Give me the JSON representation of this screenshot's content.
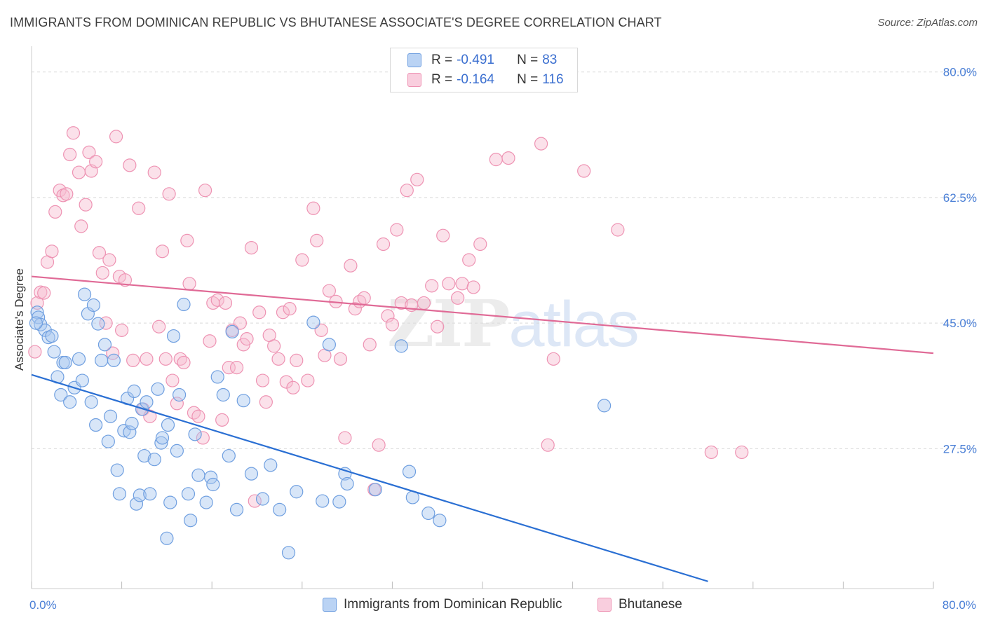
{
  "title": "IMMIGRANTS FROM DOMINICAN REPUBLIC VS BHUTANESE ASSOCIATE'S DEGREE CORRELATION CHART",
  "source": "Source: ZipAtlas.com",
  "watermark": {
    "part1": "ZIP",
    "part2": "atlas"
  },
  "legend": {
    "r_label": "R =",
    "n_label": "N =",
    "series": [
      {
        "r": "-0.491",
        "n": "83"
      },
      {
        "r": "-0.164",
        "n": "116"
      }
    ]
  },
  "colors": {
    "blue_fill": "#a9c8f0",
    "blue_stroke": "#6f9fe0",
    "blue_line": "#2a6fd3",
    "pink_fill": "#f7bcd0",
    "pink_stroke": "#ee93b3",
    "pink_line": "#e06a96"
  },
  "chart_data": {
    "type": "scatter",
    "title": "IMMIGRANTS FROM DOMINICAN REPUBLIC VS BHUTANESE ASSOCIATE'S DEGREE CORRELATION CHART",
    "xlabel": "",
    "ylabel": "Associate's Degree",
    "xlim": [
      0,
      80
    ],
    "ylim": [
      8,
      83
    ],
    "x_tick_labels": [
      "0.0%",
      "80.0%"
    ],
    "y_ticks": [
      27.5,
      45.0,
      62.5,
      80.0
    ],
    "y_tick_labels": [
      "27.5%",
      "45.0%",
      "62.5%",
      "80.0%"
    ],
    "grid": true,
    "series": [
      {
        "name": "Immigrants from Dominican Republic",
        "color": "blue",
        "trend": {
          "x": [
            0,
            60
          ],
          "y": [
            37.8,
            9.0
          ]
        },
        "points": [
          [
            0.5,
            46.5
          ],
          [
            0.6,
            45.8
          ],
          [
            0.8,
            44.8
          ],
          [
            1.2,
            44.0
          ],
          [
            1.5,
            43.0
          ],
          [
            1.8,
            43.2
          ],
          [
            2.0,
            41.0
          ],
          [
            2.3,
            37.5
          ],
          [
            2.6,
            35.0
          ],
          [
            2.8,
            39.5
          ],
          [
            3.0,
            39.5
          ],
          [
            3.4,
            34.0
          ],
          [
            3.8,
            36.0
          ],
          [
            4.2,
            40.0
          ],
          [
            4.5,
            37.0
          ],
          [
            4.7,
            49.0
          ],
          [
            5.0,
            46.3
          ],
          [
            5.5,
            47.5
          ],
          [
            5.9,
            44.9
          ],
          [
            6.2,
            39.8
          ],
          [
            6.5,
            42.0
          ],
          [
            6.8,
            28.5
          ],
          [
            7.0,
            32.0
          ],
          [
            7.3,
            39.8
          ],
          [
            5.3,
            34.0
          ],
          [
            5.7,
            30.8
          ],
          [
            7.6,
            24.5
          ],
          [
            7.8,
            21.2
          ],
          [
            8.2,
            30.0
          ],
          [
            8.5,
            34.5
          ],
          [
            8.7,
            29.8
          ],
          [
            8.9,
            31.0
          ],
          [
            9.1,
            35.5
          ],
          [
            9.3,
            19.8
          ],
          [
            9.6,
            21.0
          ],
          [
            9.8,
            33.0
          ],
          [
            10.0,
            26.5
          ],
          [
            10.2,
            34.0
          ],
          [
            10.5,
            21.2
          ],
          [
            10.9,
            26.0
          ],
          [
            11.2,
            35.8
          ],
          [
            11.5,
            28.3
          ],
          [
            11.6,
            29.0
          ],
          [
            12.0,
            15.0
          ],
          [
            12.1,
            30.8
          ],
          [
            12.3,
            20.0
          ],
          [
            12.6,
            43.2
          ],
          [
            12.9,
            27.2
          ],
          [
            13.1,
            35.0
          ],
          [
            13.5,
            47.6
          ],
          [
            13.9,
            21.2
          ],
          [
            14.1,
            17.5
          ],
          [
            14.5,
            29.5
          ],
          [
            14.8,
            23.8
          ],
          [
            15.5,
            20.0
          ],
          [
            15.9,
            23.5
          ],
          [
            16.1,
            22.5
          ],
          [
            16.5,
            37.5
          ],
          [
            17.0,
            35.0
          ],
          [
            17.5,
            26.5
          ],
          [
            17.8,
            43.8
          ],
          [
            18.2,
            19.0
          ],
          [
            18.8,
            34.2
          ],
          [
            19.5,
            24.0
          ],
          [
            20.5,
            20.5
          ],
          [
            21.2,
            25.2
          ],
          [
            22.0,
            19.0
          ],
          [
            22.8,
            13.0
          ],
          [
            23.5,
            21.5
          ],
          [
            25.0,
            45.1
          ],
          [
            25.8,
            20.2
          ],
          [
            26.4,
            42.0
          ],
          [
            27.3,
            20.1
          ],
          [
            27.8,
            24.0
          ],
          [
            28.0,
            22.6
          ],
          [
            30.5,
            21.8
          ],
          [
            32.8,
            41.8
          ],
          [
            33.5,
            24.3
          ],
          [
            33.8,
            20.7
          ],
          [
            35.2,
            18.5
          ],
          [
            36.2,
            17.5
          ],
          [
            50.8,
            33.5
          ],
          [
            0.4,
            45.0
          ]
        ]
      },
      {
        "name": "Bhutanese",
        "color": "pink",
        "trend": {
          "x": [
            0,
            80
          ],
          "y": [
            51.5,
            40.8
          ]
        },
        "points": [
          [
            0.3,
            41.0
          ],
          [
            0.5,
            47.8
          ],
          [
            0.8,
            49.3
          ],
          [
            1.1,
            49.2
          ],
          [
            1.4,
            53.5
          ],
          [
            1.8,
            55.0
          ],
          [
            2.1,
            60.5
          ],
          [
            2.5,
            63.5
          ],
          [
            2.8,
            62.8
          ],
          [
            3.1,
            63.0
          ],
          [
            3.4,
            68.5
          ],
          [
            3.7,
            71.5
          ],
          [
            4.2,
            66.0
          ],
          [
            4.4,
            58.5
          ],
          [
            4.8,
            61.5
          ],
          [
            5.1,
            68.8
          ],
          [
            5.3,
            66.2
          ],
          [
            5.7,
            67.5
          ],
          [
            6.0,
            54.8
          ],
          [
            6.3,
            52.0
          ],
          [
            6.6,
            45.0
          ],
          [
            6.9,
            53.8
          ],
          [
            7.2,
            40.8
          ],
          [
            7.5,
            71.0
          ],
          [
            7.8,
            51.5
          ],
          [
            8.0,
            44.0
          ],
          [
            8.3,
            51.0
          ],
          [
            8.7,
            67.0
          ],
          [
            9.0,
            39.8
          ],
          [
            9.5,
            61.0
          ],
          [
            9.9,
            33.0
          ],
          [
            10.2,
            40.0
          ],
          [
            10.5,
            32.0
          ],
          [
            10.9,
            66.0
          ],
          [
            11.3,
            44.5
          ],
          [
            11.6,
            55.0
          ],
          [
            11.9,
            40.0
          ],
          [
            12.2,
            63.0
          ],
          [
            12.5,
            37.0
          ],
          [
            12.9,
            33.8
          ],
          [
            13.2,
            40.0
          ],
          [
            13.5,
            39.5
          ],
          [
            13.8,
            56.5
          ],
          [
            14.0,
            50.5
          ],
          [
            14.4,
            32.5
          ],
          [
            14.8,
            32.0
          ],
          [
            15.2,
            29.0
          ],
          [
            15.4,
            63.5
          ],
          [
            15.8,
            42.5
          ],
          [
            16.1,
            47.8
          ],
          [
            16.5,
            48.2
          ],
          [
            16.9,
            31.5
          ],
          [
            17.2,
            47.8
          ],
          [
            17.5,
            38.8
          ],
          [
            17.8,
            44.0
          ],
          [
            18.2,
            38.8
          ],
          [
            18.5,
            45.0
          ],
          [
            18.8,
            42.0
          ],
          [
            19.1,
            42.8
          ],
          [
            19.5,
            55.5
          ],
          [
            19.8,
            20.2
          ],
          [
            20.2,
            46.5
          ],
          [
            20.5,
            37.0
          ],
          [
            20.8,
            34.0
          ],
          [
            21.1,
            43.3
          ],
          [
            21.5,
            41.8
          ],
          [
            21.9,
            40.0
          ],
          [
            22.3,
            46.5
          ],
          [
            22.6,
            36.8
          ],
          [
            22.9,
            47.0
          ],
          [
            23.2,
            36.0
          ],
          [
            23.5,
            39.8
          ],
          [
            24.0,
            53.8
          ],
          [
            24.5,
            37.0
          ],
          [
            25.0,
            61.0
          ],
          [
            25.3,
            56.5
          ],
          [
            25.7,
            44.0
          ],
          [
            26.0,
            40.5
          ],
          [
            26.4,
            49.5
          ],
          [
            27.0,
            48.0
          ],
          [
            27.4,
            40.0
          ],
          [
            27.8,
            29.0
          ],
          [
            28.3,
            53.0
          ],
          [
            28.7,
            47.0
          ],
          [
            29.1,
            48.0
          ],
          [
            29.5,
            48.5
          ],
          [
            30.0,
            42.0
          ],
          [
            30.4,
            21.8
          ],
          [
            30.8,
            28.0
          ],
          [
            31.2,
            56.0
          ],
          [
            31.6,
            46.0
          ],
          [
            32.0,
            44.8
          ],
          [
            32.4,
            58.0
          ],
          [
            32.8,
            47.8
          ],
          [
            33.3,
            63.5
          ],
          [
            33.7,
            47.5
          ],
          [
            34.2,
            65.0
          ],
          [
            34.8,
            47.8
          ],
          [
            35.5,
            50.2
          ],
          [
            36.0,
            44.5
          ],
          [
            36.5,
            57.2
          ],
          [
            37.0,
            50.5
          ],
          [
            37.8,
            48.5
          ],
          [
            38.2,
            50.5
          ],
          [
            38.8,
            53.8
          ],
          [
            39.2,
            50.0
          ],
          [
            39.8,
            56.0
          ],
          [
            41.2,
            67.8
          ],
          [
            42.3,
            68.0
          ],
          [
            45.2,
            70.0
          ],
          [
            45.8,
            28.0
          ],
          [
            46.3,
            40.0
          ],
          [
            49.0,
            66.2
          ],
          [
            52.0,
            58.0
          ],
          [
            60.3,
            27.0
          ],
          [
            63.0,
            27.0
          ]
        ]
      }
    ]
  },
  "bottom_legend": [
    {
      "label": "Immigrants from Dominican Republic"
    },
    {
      "label": "Bhutanese"
    }
  ]
}
